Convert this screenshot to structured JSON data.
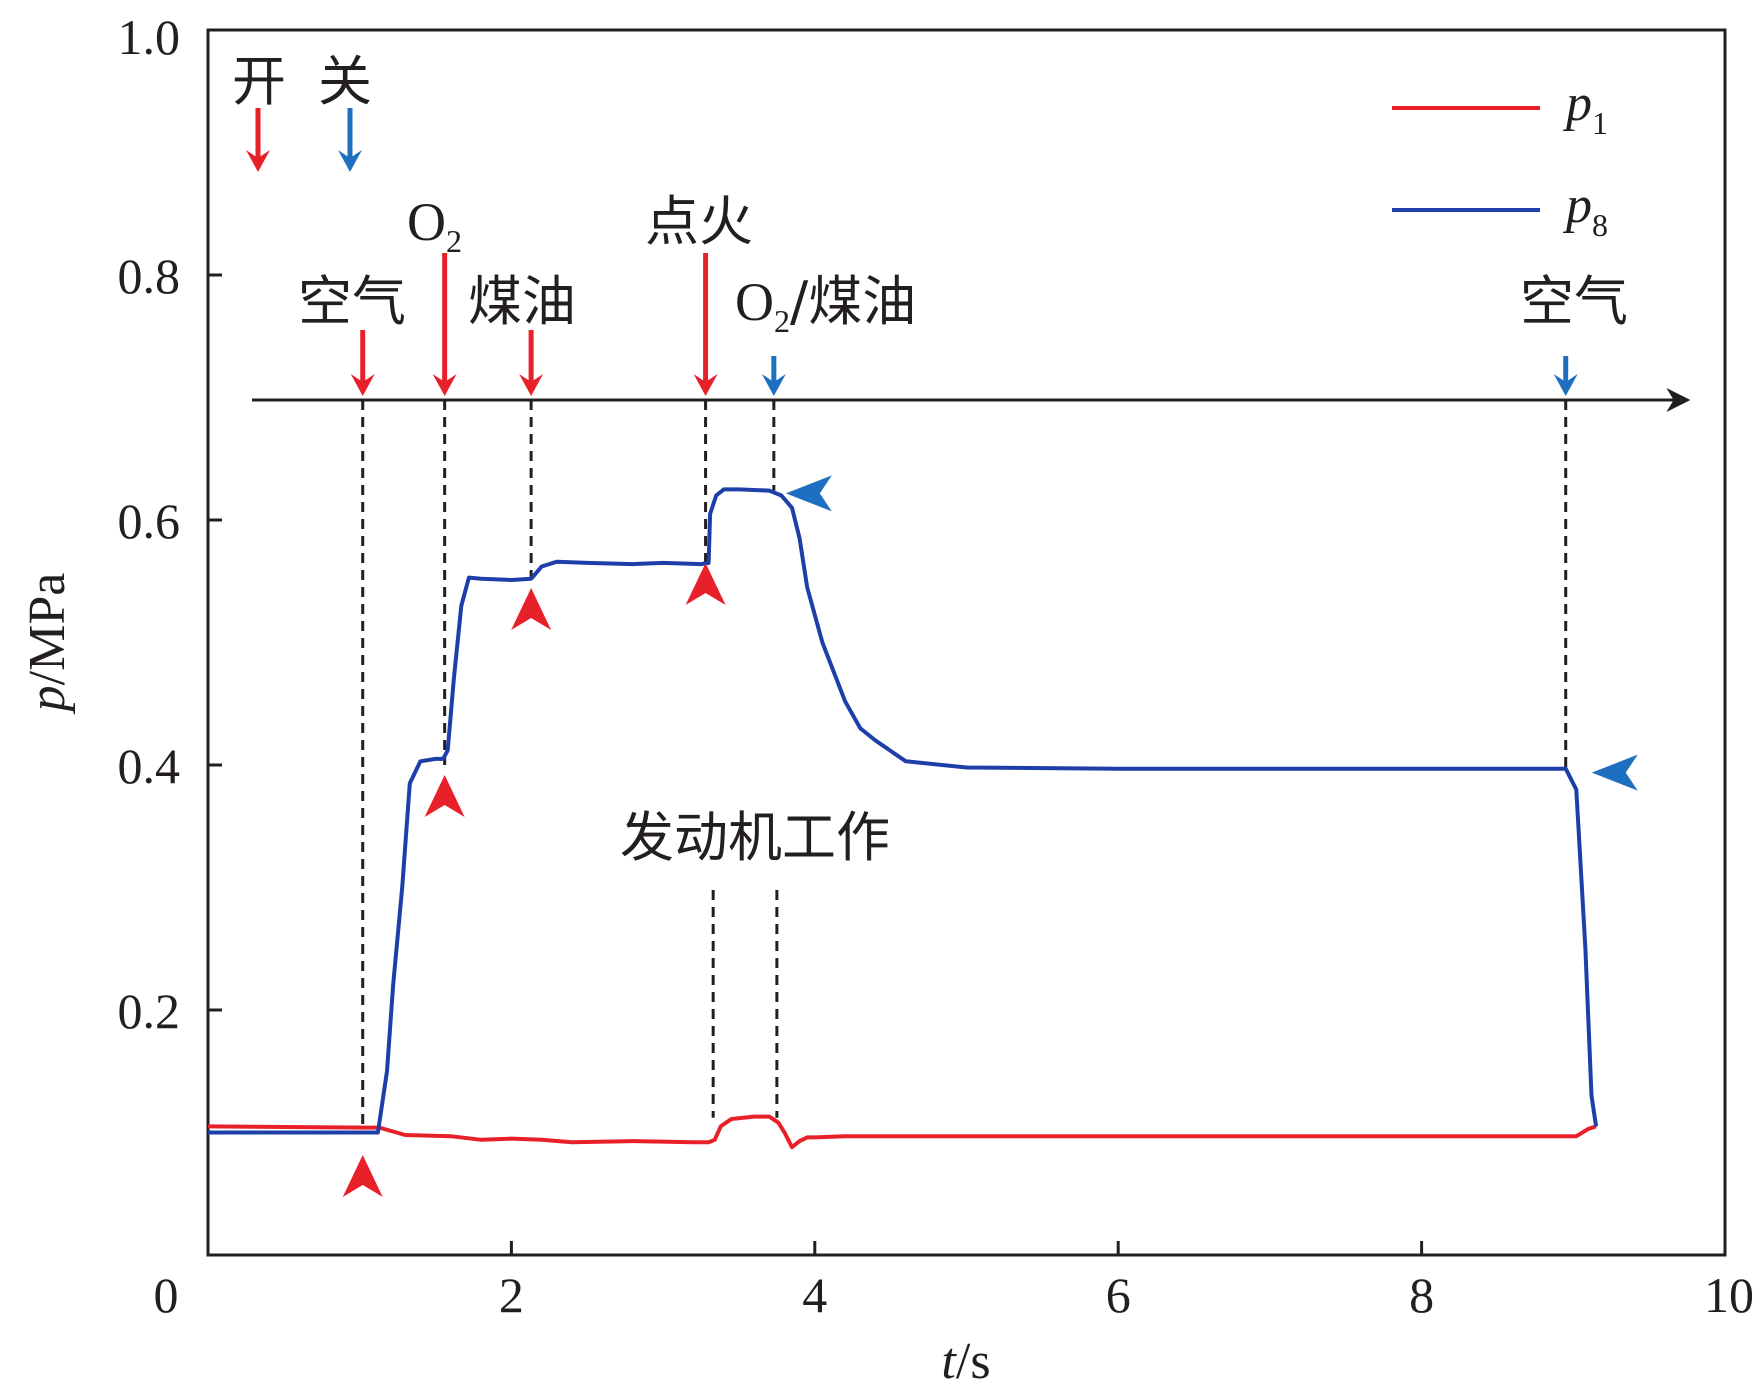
{
  "chart_data": {
    "type": "line",
    "xlabel": {
      "var": "t",
      "unit": "/s"
    },
    "ylabel": {
      "var": "p",
      "unit": "/MPa"
    },
    "xlim": [
      0,
      10
    ],
    "ylim": [
      0.0,
      1.0
    ],
    "xticks": [
      {
        "value": 0,
        "label": "0"
      },
      {
        "value": 2,
        "label": "2"
      },
      {
        "value": 4,
        "label": "4"
      },
      {
        "value": 6,
        "label": "6"
      },
      {
        "value": 8,
        "label": "8"
      },
      {
        "value": 10,
        "label": "10"
      }
    ],
    "yticks": [
      {
        "value": 0.2,
        "label": "0.2"
      },
      {
        "value": 0.4,
        "label": "0.4"
      },
      {
        "value": 0.6,
        "label": "0.6"
      },
      {
        "value": 0.8,
        "label": "0.8"
      },
      {
        "value": 1.0,
        "label": "1.0"
      }
    ],
    "grid": false,
    "legend_position": "top-right",
    "series": [
      {
        "name": "p1",
        "name_var": "p",
        "name_sub": "1",
        "color": "#e8202a",
        "x": [
          0,
          1.05,
          1.13,
          1.3,
          1.6,
          1.8,
          2.0,
          2.2,
          2.4,
          2.8,
          3.2,
          3.3,
          3.34,
          3.38,
          3.45,
          3.6,
          3.7,
          3.76,
          3.8,
          3.85,
          3.9,
          3.95,
          4.0,
          4.2,
          5,
          6,
          7,
          8,
          8.95,
          9.02,
          9.1,
          9.15
        ],
        "values": [
          0.105,
          0.104,
          0.104,
          0.098,
          0.097,
          0.094,
          0.095,
          0.094,
          0.092,
          0.093,
          0.092,
          0.092,
          0.094,
          0.105,
          0.111,
          0.113,
          0.113,
          0.108,
          0.1,
          0.088,
          0.093,
          0.096,
          0.096,
          0.097,
          0.097,
          0.097,
          0.097,
          0.097,
          0.097,
          0.097,
          0.103,
          0.105
        ]
      },
      {
        "name": "p8",
        "name_var": "p",
        "name_sub": "8",
        "color": "#1e3fa8",
        "x": [
          0,
          1.1,
          1.12,
          1.18,
          1.22,
          1.28,
          1.33,
          1.4,
          1.5,
          1.55,
          1.58,
          1.62,
          1.67,
          1.72,
          1.8,
          2.0,
          2.13,
          2.2,
          2.3,
          2.5,
          2.8,
          3.0,
          3.25,
          3.3,
          3.31,
          3.35,
          3.4,
          3.5,
          3.7,
          3.78,
          3.85,
          3.9,
          3.95,
          4.05,
          4.2,
          4.3,
          4.4,
          4.6,
          5,
          6,
          7,
          8,
          8.95,
          9.02,
          9.08,
          9.12,
          9.15
        ],
        "values": [
          0.1,
          0.1,
          0.1,
          0.15,
          0.22,
          0.3,
          0.385,
          0.403,
          0.405,
          0.405,
          0.412,
          0.47,
          0.53,
          0.553,
          0.552,
          0.551,
          0.552,
          0.562,
          0.566,
          0.565,
          0.564,
          0.565,
          0.564,
          0.565,
          0.605,
          0.62,
          0.625,
          0.625,
          0.624,
          0.62,
          0.61,
          0.585,
          0.545,
          0.5,
          0.452,
          0.43,
          0.42,
          0.403,
          0.398,
          0.397,
          0.397,
          0.397,
          0.397,
          0.38,
          0.25,
          0.13,
          0.105
        ]
      }
    ],
    "event_labels": {
      "open": "开",
      "close": "关",
      "air": "空气",
      "o2_base": "O",
      "o2_sub": "2",
      "kerosene": "煤油",
      "ignition": "点火",
      "o2_kerosene_base": "O",
      "o2_kerosene_sub": "2",
      "o2_kerosene_rest": "/煤油",
      "air_end": "空气",
      "engine_working": "发动机工作"
    },
    "events": [
      {
        "t": 1.02,
        "type": "open",
        "label_key": "air"
      },
      {
        "t": 1.56,
        "type": "open",
        "label_key": "o2"
      },
      {
        "t": 2.13,
        "type": "open",
        "label_key": "kerosene"
      },
      {
        "t": 3.28,
        "type": "open",
        "label_key": "ignition"
      },
      {
        "t": 3.73,
        "type": "close",
        "label_key": "o2_kerosene"
      },
      {
        "t": 8.95,
        "type": "close",
        "label_key": "air_end"
      }
    ],
    "engine_working_interval": [
      3.33,
      3.75
    ],
    "open_color": "#e8202a",
    "close_color": "#1f6fc0"
  }
}
